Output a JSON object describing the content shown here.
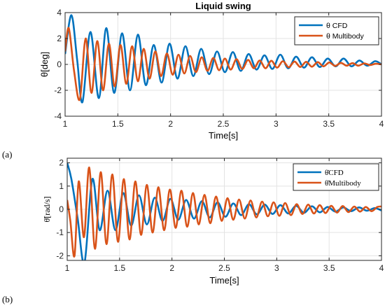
{
  "chart_data": [
    {
      "type": "line",
      "panel_label": "(a)",
      "title": "Liquid swing",
      "xlabel": "Time[s]",
      "ylabel": "θ[deg]",
      "xlim": [
        1,
        4
      ],
      "ylim": [
        -4,
        4
      ],
      "xticks": [
        1,
        1.5,
        2,
        2.5,
        3,
        3.5,
        4
      ],
      "xtick_labels": [
        "1",
        "1.5",
        "2",
        "2.5",
        "3",
        "3.5",
        "4"
      ],
      "yticks": [
        -4,
        -2,
        0,
        2,
        4
      ],
      "ytick_labels": [
        "-4",
        "-2",
        "0",
        "2",
        "4"
      ],
      "grid": true,
      "legend_position": "top-right",
      "series": [
        {
          "name": "θ CFD",
          "color": "#0072BD",
          "x": [
            1.0,
            1.06,
            1.115,
            1.165,
            1.24,
            1.32,
            1.39,
            1.465,
            1.54,
            1.615,
            1.69,
            1.765,
            1.84,
            1.915,
            1.99,
            2.065,
            2.14,
            2.215,
            2.29,
            2.365,
            2.44,
            2.515,
            2.59,
            2.665,
            2.74,
            2.815,
            2.89,
            2.965,
            3.04,
            3.115,
            3.19,
            3.265,
            3.34,
            3.415,
            3.49,
            3.565,
            3.64,
            3.715,
            3.79,
            3.865,
            3.94,
            4.0
          ],
          "y": [
            0.8,
            3.8,
            0.3,
            -2.9,
            2.5,
            -2.6,
            2.8,
            -2.2,
            2.4,
            -2.0,
            2.3,
            -1.6,
            1.5,
            -1.4,
            1.6,
            -1.1,
            1.4,
            -0.9,
            1.2,
            -0.75,
            1.0,
            -0.6,
            0.95,
            -0.5,
            0.8,
            -0.4,
            0.7,
            -0.35,
            0.75,
            -0.3,
            0.6,
            -0.25,
            0.55,
            -0.2,
            0.45,
            -0.15,
            0.45,
            -0.15,
            0.3,
            -0.1,
            0.25,
            0.0
          ]
        },
        {
          "name": "θ Multibody",
          "color": "#D95319",
          "x": [
            1.0,
            1.035,
            1.085,
            1.14,
            1.195,
            1.25,
            1.305,
            1.36,
            1.415,
            1.47,
            1.525,
            1.58,
            1.635,
            1.69,
            1.745,
            1.8,
            1.855,
            1.91,
            1.965,
            2.02,
            2.075,
            2.13,
            2.185,
            2.24,
            2.295,
            2.35,
            2.405,
            2.46,
            2.515,
            2.57,
            2.625,
            2.68,
            2.735,
            2.79,
            2.845,
            2.9,
            2.955,
            3.01,
            3.065,
            3.12,
            3.175,
            3.23,
            3.285,
            3.34,
            3.395,
            3.45,
            3.505,
            3.56,
            3.615,
            3.67,
            3.725,
            3.78,
            3.835,
            3.89,
            3.945,
            4.0
          ],
          "y": [
            1.0,
            2.8,
            -0.5,
            -2.7,
            2.0,
            -2.2,
            1.8,
            -2.0,
            1.6,
            -1.7,
            1.5,
            -1.5,
            1.4,
            -1.3,
            1.2,
            -1.1,
            1.0,
            -0.9,
            0.85,
            -0.8,
            0.75,
            -0.7,
            0.65,
            -0.6,
            0.55,
            -0.5,
            0.5,
            -0.45,
            0.45,
            -0.4,
            0.4,
            -0.35,
            0.35,
            -0.3,
            0.3,
            -0.3,
            0.28,
            -0.25,
            0.25,
            -0.22,
            0.22,
            -0.2,
            0.2,
            -0.18,
            0.18,
            -0.15,
            0.15,
            -0.12,
            0.12,
            -0.1,
            0.1,
            -0.1,
            0.08,
            -0.05,
            0.05,
            0.0
          ]
        }
      ]
    },
    {
      "type": "line",
      "panel_label": "(b)",
      "title": "",
      "xlabel": "Time[s]",
      "ylabel": "θ̇[rad/s]",
      "xlim": [
        1,
        4
      ],
      "ylim": [
        -2.2,
        2.2
      ],
      "xticks": [
        1,
        1.5,
        2,
        2.5,
        3,
        3.5,
        4
      ],
      "xtick_labels": [
        "1",
        "1.5",
        "2",
        "2.5",
        "3",
        "3.5",
        "4"
      ],
      "yticks": [
        -2,
        -1,
        0,
        1,
        2
      ],
      "ytick_labels": [
        "-2",
        "-1",
        "0",
        "1",
        "2"
      ],
      "grid": true,
      "legend_position": "top-right",
      "series": [
        {
          "name": "θ̇CFD",
          "color": "#0072BD",
          "x": [
            1.0,
            1.04,
            1.1,
            1.165,
            1.24,
            1.31,
            1.385,
            1.46,
            1.535,
            1.61,
            1.685,
            1.76,
            1.835,
            1.91,
            1.985,
            2.06,
            2.135,
            2.21,
            2.285,
            2.36,
            2.435,
            2.51,
            2.585,
            2.66,
            2.735,
            2.81,
            2.885,
            2.96,
            3.035,
            3.11,
            3.185,
            3.26,
            3.335,
            3.41,
            3.485,
            3.56,
            3.635,
            3.71,
            3.785,
            3.86,
            3.935,
            4.0
          ],
          "y": [
            2.0,
            1.3,
            -0.4,
            -2.3,
            1.3,
            -0.9,
            0.8,
            -0.9,
            0.7,
            -0.7,
            0.6,
            -0.65,
            0.5,
            -0.5,
            0.45,
            -0.45,
            0.4,
            -0.4,
            0.35,
            -0.35,
            0.3,
            -0.32,
            0.25,
            -0.25,
            0.22,
            -0.22,
            0.2,
            -0.2,
            0.18,
            -0.18,
            0.15,
            -0.15,
            0.13,
            -0.13,
            0.1,
            -0.1,
            0.08,
            -0.08,
            0.08,
            -0.06,
            0.05,
            -0.05
          ]
        },
        {
          "name": "θ̇Multibody",
          "color": "#D95319",
          "x": [
            1.0,
            1.03,
            1.07,
            1.11,
            1.16,
            1.21,
            1.265,
            1.32,
            1.375,
            1.43,
            1.485,
            1.54,
            1.595,
            1.65,
            1.705,
            1.76,
            1.815,
            1.87,
            1.925,
            1.98,
            2.035,
            2.09,
            2.145,
            2.2,
            2.255,
            2.31,
            2.365,
            2.42,
            2.475,
            2.53,
            2.585,
            2.64,
            2.695,
            2.75,
            2.805,
            2.86,
            2.915,
            2.97,
            3.025,
            3.08,
            3.135,
            3.19,
            3.245,
            3.3,
            3.355,
            3.41,
            3.465,
            3.52,
            3.575,
            3.63,
            3.685,
            3.74,
            3.795,
            3.85,
            3.905,
            3.96,
            4.0
          ],
          "y": [
            0.4,
            -0.5,
            -2.0,
            1.2,
            -1.2,
            1.8,
            -1.7,
            1.6,
            -1.5,
            1.5,
            -1.4,
            1.3,
            -1.3,
            1.2,
            -1.1,
            1.05,
            -1.0,
            0.95,
            -0.9,
            0.85,
            -0.8,
            0.8,
            -0.75,
            0.7,
            -0.65,
            0.62,
            -0.6,
            0.55,
            -0.5,
            0.48,
            -0.45,
            0.42,
            -0.4,
            0.38,
            -0.35,
            0.33,
            -0.3,
            0.3,
            -0.28,
            0.27,
            -0.25,
            0.22,
            -0.2,
            0.2,
            -0.18,
            0.18,
            -0.16,
            0.15,
            -0.14,
            0.14,
            -0.12,
            0.12,
            -0.1,
            0.1,
            -0.08,
            0.1,
            0.12
          ]
        }
      ]
    }
  ]
}
